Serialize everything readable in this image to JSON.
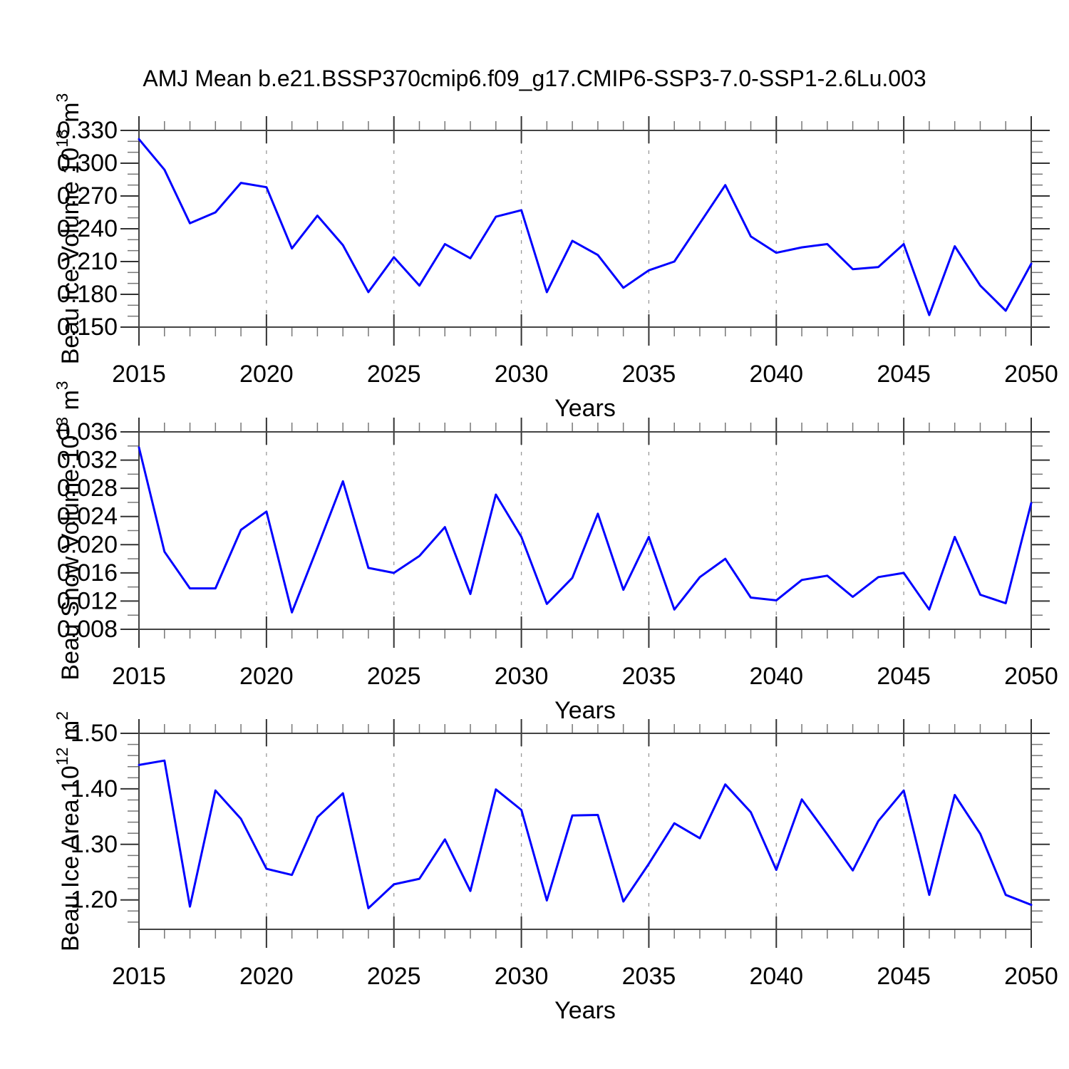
{
  "title": "AMJ Mean b.e21.BSSP370cmip6.f09_g17.CMIP6-SSP3-7.0-SSP1-2.6Lu.003",
  "colors": {
    "series_line": "#0000ff",
    "axis": "#444444",
    "major_tick": "#333333",
    "minor_tick": "#777777",
    "gridline": "#999999",
    "text": "#000000"
  },
  "chart_data": [
    {
      "type": "line",
      "ylabel": "Beau Ice Volume 10^{13} m^{3}",
      "xlabel": "Years",
      "x_tick_labels": [
        "2015",
        "2020",
        "2025",
        "2030",
        "2035",
        "2040",
        "2045",
        "2050"
      ],
      "y_tick_labels": [
        "0.330",
        "0.300",
        "0.270",
        "0.240",
        "0.210",
        "0.180",
        "0.150"
      ],
      "x_start": 2015,
      "x_end": 2050,
      "x_major_step": 5,
      "x_minor_step": 1,
      "ylim": [
        0.15,
        0.33
      ],
      "y_minor_step": 0.01,
      "gridlines_at": [
        2020,
        2025,
        2030,
        2035,
        2040,
        2045
      ],
      "grid_dashed": true,
      "legend": "none",
      "values": [
        0.322,
        0.294,
        0.245,
        0.255,
        0.282,
        0.278,
        0.222,
        0.252,
        0.225,
        0.182,
        0.214,
        0.188,
        0.226,
        0.213,
        0.251,
        0.257,
        0.182,
        0.229,
        0.216,
        0.186,
        0.202,
        0.21,
        0.245,
        0.28,
        0.233,
        0.218,
        0.223,
        0.226,
        0.203,
        0.205,
        0.226,
        0.161,
        0.224,
        0.188,
        0.165,
        0.208
      ]
    },
    {
      "type": "line",
      "ylabel": "Beau Snow Volume 10^{13} m^{3}",
      "xlabel": "Years",
      "x_tick_labels": [
        "2015",
        "2020",
        "2025",
        "2030",
        "2035",
        "2040",
        "2045",
        "2050"
      ],
      "y_tick_labels": [
        "0.036",
        "0.032",
        "0.028",
        "0.024",
        "0.020",
        "0.016",
        "0.012",
        "0.008"
      ],
      "x_start": 2015,
      "x_end": 2050,
      "x_major_step": 5,
      "x_minor_step": 1,
      "ylim": [
        0.008,
        0.036
      ],
      "y_minor_step": 0.002,
      "gridlines_at": [
        2020,
        2025,
        2030,
        2035,
        2040,
        2045
      ],
      "grid_dashed": true,
      "legend": "none",
      "values": [
        0.0338,
        0.019,
        0.0138,
        0.0138,
        0.0221,
        0.0247,
        0.0104,
        0.0196,
        0.029,
        0.0167,
        0.016,
        0.0184,
        0.0225,
        0.013,
        0.0271,
        0.0211,
        0.0116,
        0.0153,
        0.0244,
        0.0136,
        0.0211,
        0.0108,
        0.0154,
        0.018,
        0.0125,
        0.0121,
        0.015,
        0.0156,
        0.0126,
        0.0154,
        0.016,
        0.0108,
        0.0211,
        0.0129,
        0.0117,
        0.0259
      ]
    },
    {
      "type": "line",
      "ylabel": "Beau Ice Area 10^{12} m^{2}",
      "xlabel": "Years",
      "x_tick_labels": [
        "2015",
        "2020",
        "2025",
        "2030",
        "2035",
        "2040",
        "2045",
        "2050"
      ],
      "y_tick_labels": [
        "1.50",
        "1.40",
        "1.30",
        "1.20"
      ],
      "x_start": 2015,
      "x_end": 2050,
      "x_major_step": 5,
      "x_minor_step": 1,
      "ylim": [
        1.147,
        1.5
      ],
      "y_minor_step": 0.02,
      "gridlines_at": [
        2020,
        2025,
        2030,
        2035,
        2040,
        2045
      ],
      "grid_dashed": true,
      "legend": "none",
      "values": [
        1.443,
        1.451,
        1.188,
        1.397,
        1.346,
        1.256,
        1.245,
        1.349,
        1.392,
        1.185,
        1.228,
        1.238,
        1.309,
        1.216,
        1.399,
        1.362,
        1.199,
        1.352,
        1.353,
        1.197,
        1.265,
        1.338,
        1.311,
        1.408,
        1.358,
        1.254,
        1.381,
        1.318,
        1.253,
        1.342,
        1.397,
        1.209,
        1.389,
        1.319,
        1.209,
        1.191
      ]
    }
  ]
}
